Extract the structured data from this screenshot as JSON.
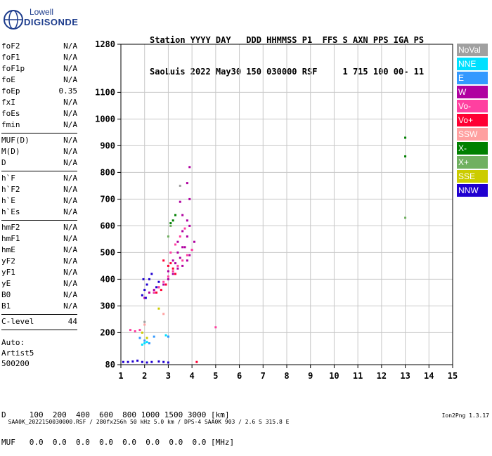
{
  "logo": {
    "line1": "Lowell",
    "line2": "DIGISONDE"
  },
  "header": {
    "labels": "Station YYYY DAY   DDD HHMMSS P1  FFS S AXN PPS IGA PS",
    "values": "SaoLuis 2022 May30 150 030000 RSF     1 715 100 00- 11"
  },
  "params": {
    "group1": [
      {
        "name": "foF2",
        "value": "N/A"
      },
      {
        "name": "foF1",
        "value": "N/A"
      },
      {
        "name": "foF1p",
        "value": "N/A"
      },
      {
        "name": "foE",
        "value": "N/A"
      },
      {
        "name": "foEp",
        "value": "0.35"
      },
      {
        "name": "fxI",
        "value": "N/A"
      },
      {
        "name": "foEs",
        "value": "N/A"
      },
      {
        "name": "fmin",
        "value": "N/A"
      }
    ],
    "group2": [
      {
        "name": "MUF(D)",
        "value": "N/A"
      },
      {
        "name": "M(D)",
        "value": "N/A"
      },
      {
        "name": "D",
        "value": "N/A"
      }
    ],
    "group3": [
      {
        "name": "h`F",
        "value": "N/A"
      },
      {
        "name": "h`F2",
        "value": "N/A"
      },
      {
        "name": "h`E",
        "value": "N/A"
      },
      {
        "name": "h`Es",
        "value": "N/A"
      }
    ],
    "group4": [
      {
        "name": "hmF2",
        "value": "N/A"
      },
      {
        "name": "hmF1",
        "value": "N/A"
      },
      {
        "name": "hmE",
        "value": "N/A"
      },
      {
        "name": "yF2",
        "value": "N/A"
      },
      {
        "name": "yF1",
        "value": "N/A"
      },
      {
        "name": "yE",
        "value": "N/A"
      },
      {
        "name": "B0",
        "value": "N/A"
      },
      {
        "name": "B1",
        "value": "N/A"
      }
    ],
    "clevel": {
      "name": "C-level",
      "value": "44"
    }
  },
  "auto": {
    "line1": "Auto:",
    "line2": "Artist5",
    "line3": "500200"
  },
  "legend": [
    {
      "label": "NoVal",
      "color": "#a0a0a0"
    },
    {
      "label": "NNE",
      "color": "#00e0ff"
    },
    {
      "label": "E",
      "color": "#3399ff"
    },
    {
      "label": "W",
      "color": "#b000a0"
    },
    {
      "label": "Vo-",
      "color": "#ff40a0"
    },
    {
      "label": "Vo+",
      "color": "#ff0033"
    },
    {
      "label": "SSW",
      "color": "#ffa0a0"
    },
    {
      "label": "X-",
      "color": "#008000"
    },
    {
      "label": "X+",
      "color": "#70b060"
    },
    {
      "label": "SSE",
      "color": "#cccc00"
    },
    {
      "label": "NNW",
      "color": "#2000d0"
    }
  ],
  "bottom": {
    "line1": "D     100  200  400  600  800 1000 1500 3000 [km]",
    "line2": "MUF   0.0  0.0  0.0  0.0  0.0  0.0  0.0  0.0 [MHz]"
  },
  "footer": {
    "left": "SAA0K_2022150030000.RSF / 280fx256h 50 kHz 5.0 km / DPS-4 SAA0K 903 / 2.6 S 315.8 E",
    "right": "Ion2Png 1.3.17"
  },
  "chart_data": {
    "type": "scatter",
    "xlim": [
      1,
      15
    ],
    "ylim": [
      80,
      1280
    ],
    "x_ticks": [
      1,
      2,
      3,
      4,
      5,
      6,
      7,
      8,
      9,
      10,
      11,
      12,
      13,
      14,
      15
    ],
    "y_ticks": [
      80,
      200,
      300,
      400,
      500,
      600,
      700,
      800,
      900,
      1000,
      1100,
      1280
    ],
    "grid": true,
    "series": [
      {
        "name": "W",
        "color": "#b000a0",
        "x": [
          2.0,
          2.2,
          2.4,
          2.6,
          2.8,
          3.0,
          3.2,
          3.4,
          3.6,
          3.8,
          3.9,
          4.0,
          4.1,
          3.2,
          3.4,
          3.6,
          3.8,
          3.0,
          3.3,
          3.5,
          3.7,
          3.9,
          3.6,
          3.8,
          3.4,
          3.6,
          3.9,
          3.5,
          3.8,
          3.9
        ],
        "y": [
          330,
          350,
          360,
          370,
          380,
          400,
          420,
          440,
          450,
          470,
          490,
          510,
          540,
          470,
          500,
          520,
          560,
          430,
          460,
          480,
          520,
          600,
          580,
          620,
          540,
          640,
          700,
          690,
          760,
          820
        ]
      },
      {
        "name": "NNW",
        "color": "#2000d0",
        "x": [
          1.9,
          2.0,
          2.1,
          2.2,
          2.3,
          2.4,
          2.5,
          2.6,
          1.95,
          2.05,
          1.1,
          1.3,
          1.5,
          1.7,
          1.9,
          2.1,
          2.3,
          2.6,
          2.8,
          3.0
        ],
        "y": [
          340,
          360,
          380,
          400,
          420,
          350,
          370,
          390,
          400,
          330,
          90,
          90,
          92,
          95,
          90,
          88,
          90,
          92,
          90,
          88
        ]
      },
      {
        "name": "Vo-",
        "color": "#ff40a0",
        "x": [
          2.4,
          2.6,
          2.8,
          3.0,
          3.2,
          3.4,
          3.6,
          3.8,
          4.0,
          3.1,
          3.3,
          3.5,
          3.7,
          1.4,
          1.6,
          1.8,
          5.0
        ],
        "y": [
          350,
          370,
          390,
          410,
          430,
          450,
          470,
          490,
          510,
          500,
          530,
          560,
          590,
          210,
          205,
          210,
          220
        ]
      },
      {
        "name": "Vo+",
        "color": "#ff0033",
        "x": [
          2.5,
          2.7,
          2.9,
          3.0,
          3.1,
          3.3,
          2.8,
          3.2,
          4.2
        ],
        "y": [
          350,
          360,
          380,
          450,
          460,
          420,
          470,
          440,
          90
        ]
      },
      {
        "name": "X-",
        "color": "#008000",
        "x": [
          3.1,
          3.2,
          3.3,
          13.0,
          13.0
        ],
        "y": [
          610,
          620,
          640,
          930,
          860
        ]
      },
      {
        "name": "X+",
        "color": "#70b060",
        "x": [
          3.0,
          3.1,
          13.0
        ],
        "y": [
          560,
          600,
          630
        ]
      },
      {
        "name": "NNE",
        "color": "#00e0ff",
        "x": [
          1.9,
          2.0,
          2.1,
          2.9,
          3.0
        ],
        "y": [
          155,
          160,
          165,
          190,
          185
        ]
      },
      {
        "name": "E",
        "color": "#3399ff",
        "x": [
          1.8,
          2.0,
          2.2,
          2.4,
          3.0
        ],
        "y": [
          180,
          170,
          160,
          185,
          185
        ]
      },
      {
        "name": "SSE",
        "color": "#cccc00",
        "x": [
          1.9,
          2.1,
          2.6
        ],
        "y": [
          200,
          180,
          290
        ]
      },
      {
        "name": "SSW",
        "color": "#ffa0a0",
        "x": [
          2.0,
          2.8
        ],
        "y": [
          230,
          270
        ]
      },
      {
        "name": "NoVal",
        "color": "#a0a0a0",
        "x": [
          2.0,
          3.5
        ],
        "y": [
          240,
          750
        ]
      }
    ]
  }
}
